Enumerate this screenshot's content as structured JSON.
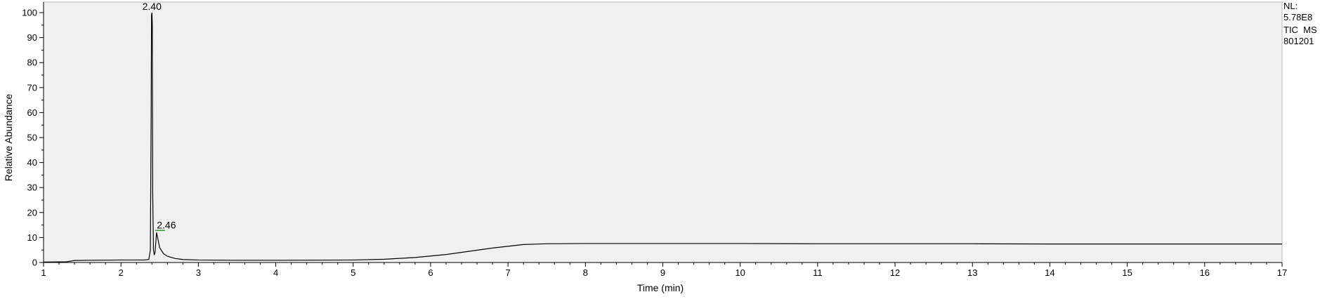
{
  "chart_data": {
    "type": "line",
    "xlabel": "Time (min)",
    "ylabel": "Relative Abundance",
    "xlim": [
      1,
      17
    ],
    "ylim": [
      0,
      100
    ],
    "x_ticks": [
      "1",
      "2",
      "3",
      "4",
      "5",
      "6",
      "7",
      "8",
      "9",
      "10",
      "11",
      "12",
      "13",
      "14",
      "15",
      "16",
      "17"
    ],
    "y_ticks": [
      "0",
      "10",
      "20",
      "30",
      "40",
      "50",
      "60",
      "70",
      "80",
      "90",
      "100"
    ],
    "grid": false,
    "background": "#f0f0f0",
    "line_color": "#000000",
    "peak_marker_color": "#2a9d2a",
    "series": [
      {
        "x": [
          1.0,
          1.3,
          1.4,
          1.6,
          2.0,
          2.3,
          2.36,
          2.38,
          2.39,
          2.395,
          2.4,
          2.405,
          2.41,
          2.42,
          2.43,
          2.44,
          2.46,
          2.48,
          2.5,
          2.55,
          2.6,
          2.7,
          2.8,
          3.0,
          3.5,
          4.0,
          5.0,
          5.4,
          5.8,
          6.2,
          6.5,
          6.8,
          7.0,
          7.2,
          7.5,
          8.0,
          9.0,
          10.0,
          11.0,
          12.0,
          13.0,
          14.0,
          15.0,
          16.0,
          17.0
        ],
        "y": [
          0.2,
          0.3,
          0.8,
          0.9,
          1.0,
          1.0,
          1.2,
          5.0,
          60.0,
          99.0,
          100.0,
          95.0,
          28.0,
          5.0,
          3.0,
          4.0,
          12.0,
          9.0,
          6.0,
          3.5,
          2.5,
          1.6,
          1.2,
          1.0,
          0.9,
          0.9,
          1.0,
          1.3,
          2.0,
          3.2,
          4.5,
          5.8,
          6.5,
          7.2,
          7.5,
          7.6,
          7.6,
          7.6,
          7.5,
          7.5,
          7.5,
          7.4,
          7.4,
          7.4,
          7.4
        ]
      }
    ],
    "annotations": [
      {
        "x": 2.4,
        "y": 100,
        "text": "2.40"
      },
      {
        "x": 2.46,
        "y": 12,
        "text": "2.46"
      }
    ]
  },
  "info": {
    "line1": "NL:",
    "line2": "5.78E8",
    "line3": "TIC  MS",
    "line4": "801201"
  }
}
